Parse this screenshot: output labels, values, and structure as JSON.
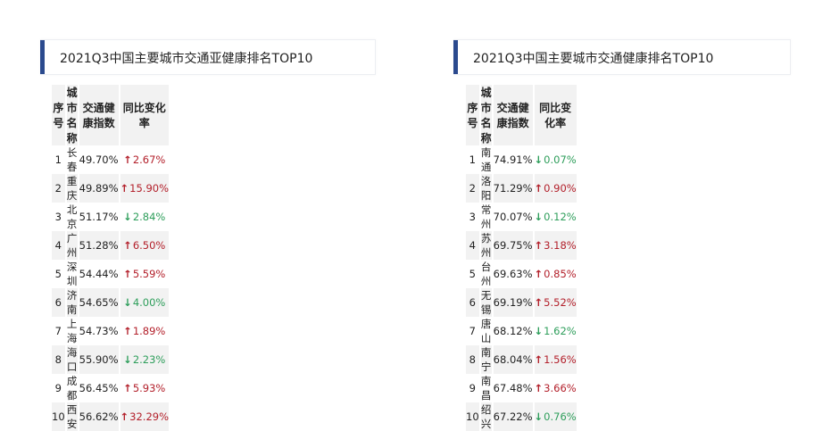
{
  "colors": {
    "accent": "#2b4a8e",
    "up": "#b3202b",
    "down": "#2e9e5b",
    "row_stripe": "#f2f2f2"
  },
  "icons": {
    "up": "arrow-up-icon",
    "down": "arrow-down-icon"
  },
  "left": {
    "title": "2021Q3中国主要城市交通亚健康排名TOP10",
    "headers": [
      "序号",
      "城市名称",
      "交通健康指数",
      "同比变化率"
    ],
    "rows": [
      {
        "rank": "1",
        "city": "长春",
        "index": "49.70%",
        "change": "2.67%",
        "dir": "up"
      },
      {
        "rank": "2",
        "city": "重庆",
        "index": "49.89%",
        "change": "15.90%",
        "dir": "up"
      },
      {
        "rank": "3",
        "city": "北京",
        "index": "51.17%",
        "change": "2.84%",
        "dir": "down"
      },
      {
        "rank": "4",
        "city": "广州",
        "index": "51.28%",
        "change": "6.50%",
        "dir": "up"
      },
      {
        "rank": "5",
        "city": "深圳",
        "index": "54.44%",
        "change": "5.59%",
        "dir": "up"
      },
      {
        "rank": "6",
        "city": "济南",
        "index": "54.65%",
        "change": "4.00%",
        "dir": "down"
      },
      {
        "rank": "7",
        "city": "上海",
        "index": "54.73%",
        "change": "1.89%",
        "dir": "up"
      },
      {
        "rank": "8",
        "city": "海口",
        "index": "55.90%",
        "change": "2.23%",
        "dir": "down"
      },
      {
        "rank": "9",
        "city": "成都",
        "index": "56.45%",
        "change": "5.93%",
        "dir": "up"
      },
      {
        "rank": "10",
        "city": "西安",
        "index": "56.62%",
        "change": "32.29%",
        "dir": "up"
      }
    ]
  },
  "right": {
    "title": "2021Q3中国主要城市交通健康排名TOP10",
    "headers": [
      "序号",
      "城市名称",
      "交通健康指数",
      "同比变化率"
    ],
    "rows": [
      {
        "rank": "1",
        "city": "南通",
        "index": "74.91%",
        "change": "0.07%",
        "dir": "down"
      },
      {
        "rank": "2",
        "city": "洛阳",
        "index": "71.29%",
        "change": "0.90%",
        "dir": "up"
      },
      {
        "rank": "3",
        "city": "常州",
        "index": "70.07%",
        "change": "0.12%",
        "dir": "down"
      },
      {
        "rank": "4",
        "city": "苏州",
        "index": "69.75%",
        "change": "3.18%",
        "dir": "up"
      },
      {
        "rank": "5",
        "city": "台州",
        "index": "69.63%",
        "change": "0.85%",
        "dir": "up"
      },
      {
        "rank": "6",
        "city": "无锡",
        "index": "69.19%",
        "change": "5.52%",
        "dir": "up"
      },
      {
        "rank": "7",
        "city": "唐山",
        "index": "68.12%",
        "change": "1.62%",
        "dir": "down"
      },
      {
        "rank": "8",
        "city": "南宁",
        "index": "68.04%",
        "change": "1.56%",
        "dir": "up"
      },
      {
        "rank": "9",
        "city": "南昌",
        "index": "67.48%",
        "change": "3.66%",
        "dir": "up"
      },
      {
        "rank": "10",
        "city": "绍兴",
        "index": "67.22%",
        "change": "0.76%",
        "dir": "down"
      }
    ]
  }
}
